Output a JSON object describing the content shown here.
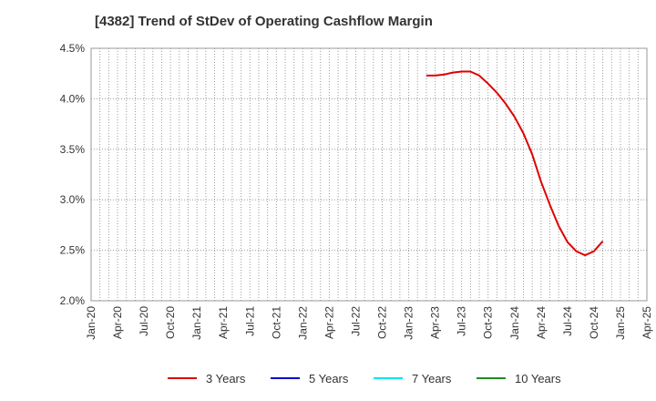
{
  "title": "[4382]  Trend of StDev of Operating Cashflow Margin",
  "chart_data": {
    "type": "line",
    "title": "[4382]  Trend of StDev of Operating Cashflow Margin",
    "xlabel": "",
    "ylabel": "",
    "x_ticks": [
      "Jan-20",
      "Apr-20",
      "Jul-20",
      "Oct-20",
      "Jan-21",
      "Apr-21",
      "Jul-21",
      "Oct-21",
      "Jan-22",
      "Apr-22",
      "Jul-22",
      "Oct-22",
      "Jan-23",
      "Apr-23",
      "Jul-23",
      "Oct-23",
      "Jan-24",
      "Apr-24",
      "Jul-24",
      "Oct-24",
      "Jan-25",
      "Apr-25"
    ],
    "y_ticks": [
      "2.0%",
      "2.5%",
      "3.0%",
      "3.5%",
      "4.0%",
      "4.5%"
    ],
    "ylim": [
      2.0,
      4.5
    ],
    "xlim": [
      "2020-01",
      "2025-04"
    ],
    "grid": true,
    "legend_position": "bottom",
    "series": [
      {
        "name": "3 Years",
        "color": "#dd0000",
        "points": [
          [
            "2023-03",
            4.23
          ],
          [
            "2023-04",
            4.23
          ],
          [
            "2023-05",
            4.24
          ],
          [
            "2023-06",
            4.26
          ],
          [
            "2023-07",
            4.27
          ],
          [
            "2023-08",
            4.27
          ],
          [
            "2023-09",
            4.23
          ],
          [
            "2023-10",
            4.15
          ],
          [
            "2023-11",
            4.06
          ],
          [
            "2023-12",
            3.95
          ],
          [
            "2024-01",
            3.82
          ],
          [
            "2024-02",
            3.66
          ],
          [
            "2024-03",
            3.45
          ],
          [
            "2024-04",
            3.18
          ],
          [
            "2024-05",
            2.95
          ],
          [
            "2024-06",
            2.74
          ],
          [
            "2024-07",
            2.58
          ],
          [
            "2024-08",
            2.49
          ],
          [
            "2024-09",
            2.45
          ],
          [
            "2024-10",
            2.49
          ],
          [
            "2024-11",
            2.59
          ]
        ]
      },
      {
        "name": "5 Years",
        "color": "#0000cc",
        "points": []
      },
      {
        "name": "7 Years",
        "color": "#00e5ee",
        "points": []
      },
      {
        "name": "10 Years",
        "color": "#228b22",
        "points": []
      }
    ]
  }
}
